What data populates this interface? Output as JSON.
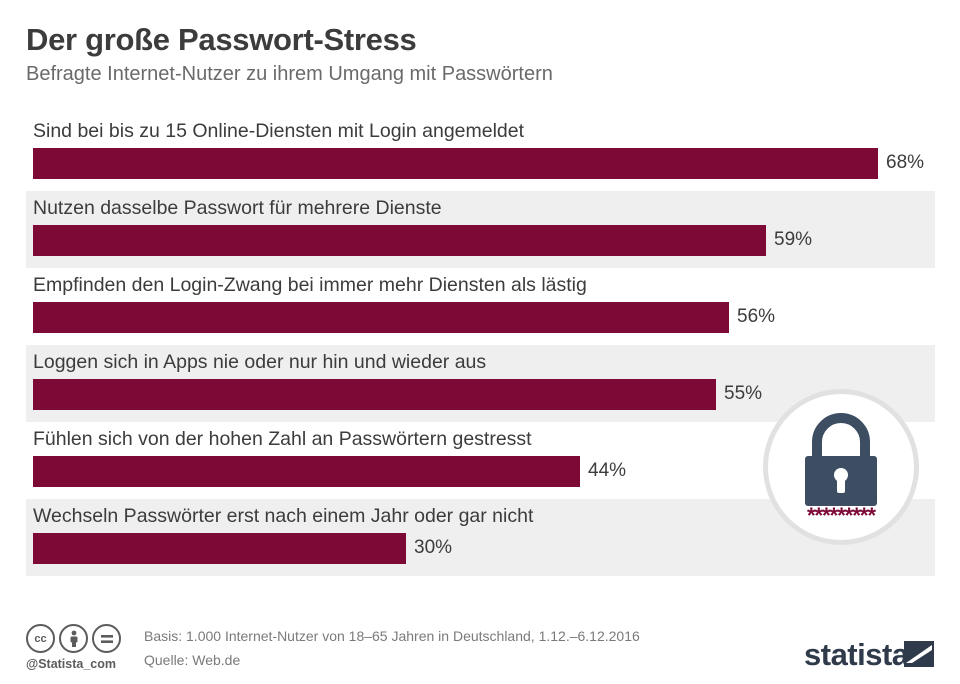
{
  "header": {
    "title": "Der große Passwort-Stress",
    "subtitle": "Befragte Internet-Nutzer zu ihrem Umgang mit Passwörtern"
  },
  "chart_data": {
    "type": "bar",
    "orientation": "horizontal",
    "categories": [
      "Sind bei bis zu 15 Online-Diensten mit Login angemeldet",
      "Nutzen dasselbe Passwort für mehrere Dienste",
      "Empfinden den Login-Zwang bei immer mehr Diensten als lästig",
      "Loggen sich in Apps nie oder nur hin und wieder aus",
      "Fühlen sich von der hohen Zahl an Passwörtern gestresst",
      "Wechseln Passwörter erst nach einem Jahr oder gar nicht"
    ],
    "values": [
      68,
      59,
      56,
      55,
      44,
      30
    ],
    "value_labels": [
      "68%",
      "59%",
      "56%",
      "55%",
      "44%",
      "30%"
    ],
    "unit": "%",
    "xlim": [
      0,
      68
    ],
    "bar_color": "#7d0a36",
    "row_alt_color": "#efefef",
    "grid": false,
    "legend": "none"
  },
  "illustration": {
    "icon": "padlock-icon",
    "masked_password": "*********",
    "lock_color": "#3d4e62",
    "mask_color": "#7d0a36"
  },
  "footer": {
    "license_icons": [
      "cc-icon",
      "by-icon",
      "nd-icon"
    ],
    "handle": "@Statista_com",
    "basis": "Basis: 1.000 Internet-Nutzer von 18–65 Jahren in Deutschland, 1.12.–6.12.2016",
    "source": "Quelle: Web.de",
    "brand": "statista"
  }
}
